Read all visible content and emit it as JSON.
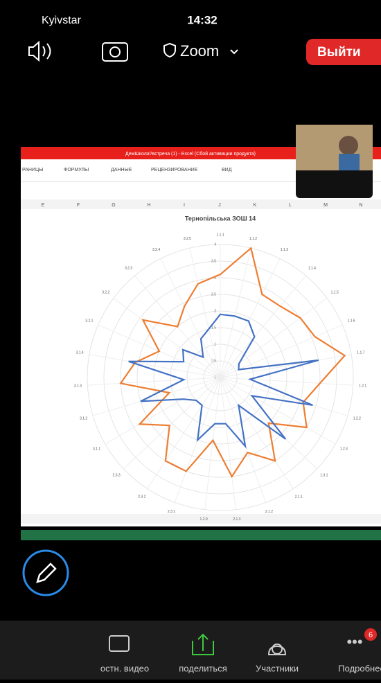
{
  "status_bar": {
    "carrier": "Kyivstar",
    "time": "14:32"
  },
  "toolbar": {
    "app": "Zoom",
    "leave_button": "Выйти"
  },
  "excel": {
    "window_title": "ДемШкола?встреча (1) - Excel (Сбой активации продукта)",
    "ribbon_tabs": [
      "РАНИЦЫ",
      "ФОРМУЛЫ",
      "ДАННЫЕ",
      "РЕЦЕНЗИРОВАНИЕ",
      "ВИД"
    ],
    "columns": [
      "E",
      "F",
      "G",
      "H",
      "I",
      "J",
      "K",
      "L",
      "M",
      "N"
    ]
  },
  "chart_data": {
    "type": "radar",
    "title": "Тернопільська ЗОШ 14",
    "categories": [
      "1.1.1",
      "1.1.2",
      "1.1.3",
      "1.1.4",
      "1.1.5",
      "1.1.6",
      "1.1.7",
      "1.2.1",
      "1.2.2",
      "1.2.3",
      "1.3.1",
      "2.1.1",
      "2.1.2",
      "2.1.3",
      "1.2.9",
      "2.3.1",
      "2.3.2",
      "2.3.3",
      "3.1.1",
      "3.1.2",
      "3.1.3",
      "3.1.4",
      "3.2.1",
      "3.2.2",
      "3.2.3",
      "3.2.4",
      "3.2.5"
    ],
    "series": [
      {
        "color": "#ed7d31",
        "values": [
          3.1,
          4.0,
          2.8,
          2.8,
          3.0,
          3.1,
          3.8,
          3.0,
          2.6,
          3.0,
          2.0,
          3.0,
          2.4,
          3.0,
          1.9,
          3.0,
          3.0,
          2.1,
          2.8,
          1.6,
          3.0,
          2.6,
          2.0,
          2.9,
          2.0,
          2.4,
          2.9
        ]
      },
      {
        "color": "#4472c4",
        "values": [
          1.9,
          1.9,
          1.9,
          1.6,
          0.7,
          0.6,
          3.0,
          0.9,
          2.9,
          1.1,
          2.7,
          1.0,
          2.2,
          1.4,
          1.4,
          2.0,
          1.0,
          1.0,
          1.3,
          2.5,
          1.1,
          2.8,
          1.2,
          1.4,
          0.8,
          1.3,
          1.5
        ]
      }
    ],
    "ylim": [
      0,
      4
    ],
    "yticks": [
      0,
      0.5,
      1,
      1.5,
      2,
      2.5,
      3,
      3.5,
      4
    ],
    "grid": true
  },
  "bottom_bar": {
    "items": [
      "остн. видео",
      "поделиться",
      "Участники",
      "Подробнее"
    ],
    "badge": "6"
  }
}
